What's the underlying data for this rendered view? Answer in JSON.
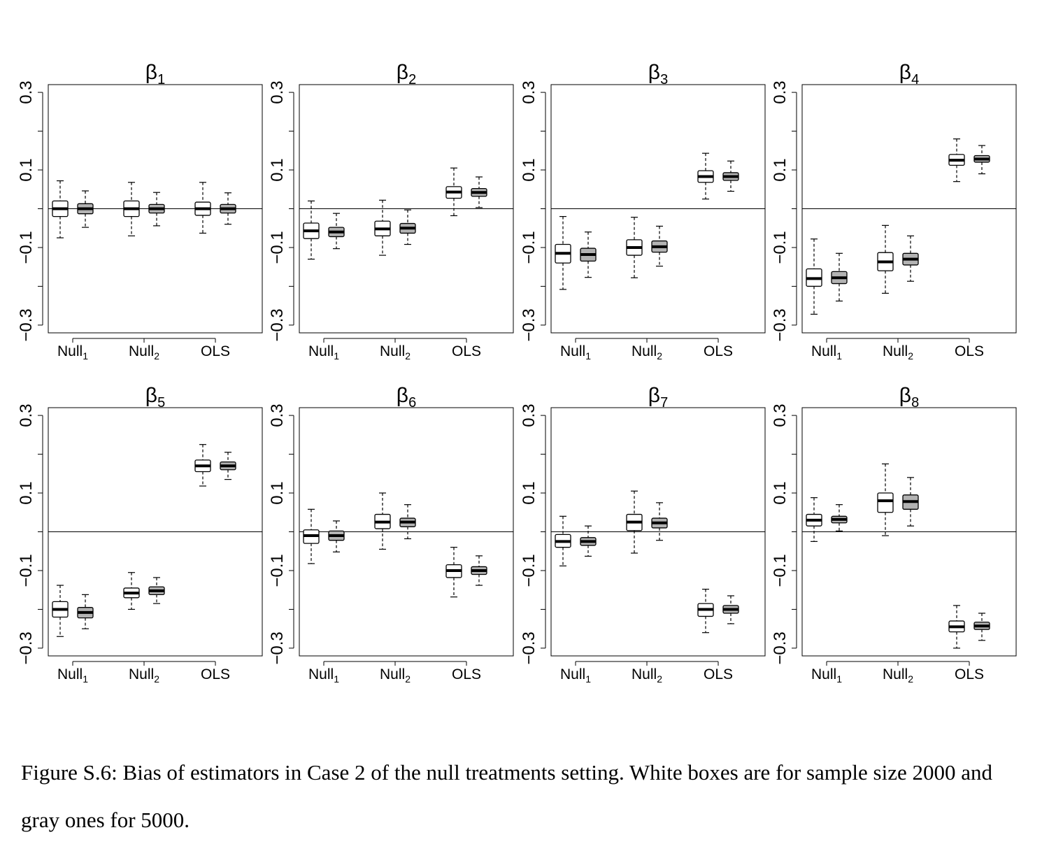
{
  "caption": "Figure S.6: Bias of estimators in Case 2 of the null treatments setting. White boxes are for sample size 2000 and gray ones for 5000.",
  "colors": {
    "white_box": "#ffffff",
    "gray_box": "#b3b3b3",
    "ink": "#000000"
  },
  "chart_data": [
    {
      "type": "boxplot",
      "title": "β1",
      "title_base": "β",
      "title_sub": "1",
      "ylim": [
        -0.32,
        0.32
      ],
      "yticks": [
        "0.3",
        "0.1",
        "−0.1",
        "−0.3"
      ],
      "ytick_values": [
        0.3,
        0.1,
        -0.1,
        -0.3
      ],
      "hline": 0,
      "groups": [
        {
          "label_base": "Null",
          "label_sub": "1",
          "white": [
            -0.075,
            -0.02,
            0,
            0.02,
            0.072
          ],
          "gray": [
            -0.048,
            -0.013,
            0,
            0.013,
            0.046
          ]
        },
        {
          "label_base": "Null",
          "label_sub": "2",
          "white": [
            -0.07,
            -0.02,
            0,
            0.02,
            0.068
          ],
          "gray": [
            -0.044,
            -0.011,
            0,
            0.011,
            0.042
          ]
        },
        {
          "label_base": "OLS",
          "label_sub": "",
          "white": [
            -0.063,
            -0.017,
            0,
            0.017,
            0.068
          ],
          "gray": [
            -0.04,
            -0.011,
            0,
            0.011,
            0.041
          ]
        }
      ]
    },
    {
      "type": "boxplot",
      "title": "β2",
      "title_base": "β",
      "title_sub": "2",
      "ylim": [
        -0.32,
        0.32
      ],
      "yticks": [
        "0.3",
        "0.1",
        "−0.1",
        "−0.3"
      ],
      "ytick_values": [
        0.3,
        0.1,
        -0.1,
        -0.3
      ],
      "hline": 0,
      "groups": [
        {
          "label_base": "Null",
          "label_sub": "1",
          "white": [
            -0.13,
            -0.077,
            -0.057,
            -0.037,
            0.02
          ],
          "gray": [
            -0.103,
            -0.072,
            -0.06,
            -0.048,
            -0.012
          ]
        },
        {
          "label_base": "Null",
          "label_sub": "2",
          "white": [
            -0.12,
            -0.07,
            -0.052,
            -0.032,
            0.022
          ],
          "gray": [
            -0.092,
            -0.063,
            -0.05,
            -0.038,
            -0.003
          ]
        },
        {
          "label_base": "OLS",
          "label_sub": "",
          "white": [
            -0.018,
            0.027,
            0.043,
            0.057,
            0.105
          ],
          "gray": [
            0.003,
            0.032,
            0.042,
            0.052,
            0.082
          ]
        }
      ]
    },
    {
      "type": "boxplot",
      "title": "β3",
      "title_base": "β",
      "title_sub": "3",
      "ylim": [
        -0.32,
        0.32
      ],
      "yticks": [
        "0.3",
        "0.1",
        "−0.1",
        "−0.3"
      ],
      "ytick_values": [
        0.3,
        0.1,
        -0.1,
        -0.3
      ],
      "hline": 0,
      "groups": [
        {
          "label_base": "Null",
          "label_sub": "1",
          "white": [
            -0.208,
            -0.14,
            -0.115,
            -0.092,
            -0.02
          ],
          "gray": [
            -0.177,
            -0.135,
            -0.118,
            -0.102,
            -0.06
          ]
        },
        {
          "label_base": "Null",
          "label_sub": "2",
          "white": [
            -0.178,
            -0.12,
            -0.1,
            -0.08,
            -0.022
          ],
          "gray": [
            -0.148,
            -0.112,
            -0.098,
            -0.083,
            -0.045
          ]
        },
        {
          "label_base": "OLS",
          "label_sub": "",
          "white": [
            0.025,
            0.068,
            0.083,
            0.098,
            0.143
          ],
          "gray": [
            0.045,
            0.073,
            0.083,
            0.093,
            0.123
          ]
        }
      ]
    },
    {
      "type": "boxplot",
      "title": "β4",
      "title_base": "β",
      "title_sub": "4",
      "ylim": [
        -0.32,
        0.32
      ],
      "yticks": [
        "0.3",
        "0.1",
        "−0.1",
        "−0.3"
      ],
      "ytick_values": [
        0.3,
        0.1,
        -0.1,
        -0.3
      ],
      "hline": 0,
      "groups": [
        {
          "label_base": "Null",
          "label_sub": "1",
          "white": [
            -0.272,
            -0.2,
            -0.18,
            -0.155,
            -0.078
          ],
          "gray": [
            -0.238,
            -0.193,
            -0.178,
            -0.162,
            -0.115
          ]
        },
        {
          "label_base": "Null",
          "label_sub": "2",
          "white": [
            -0.218,
            -0.16,
            -0.137,
            -0.113,
            -0.043
          ],
          "gray": [
            -0.187,
            -0.145,
            -0.13,
            -0.115,
            -0.07
          ]
        },
        {
          "label_base": "OLS",
          "label_sub": "",
          "white": [
            0.07,
            0.112,
            0.125,
            0.14,
            0.18
          ],
          "gray": [
            0.09,
            0.12,
            0.128,
            0.137,
            0.163
          ]
        }
      ]
    },
    {
      "type": "boxplot",
      "title": "β5",
      "title_base": "β",
      "title_sub": "5",
      "ylim": [
        -0.32,
        0.32
      ],
      "yticks": [
        "0.3",
        "0.1",
        "−0.1",
        "−0.3"
      ],
      "ytick_values": [
        0.3,
        0.1,
        -0.1,
        -0.3
      ],
      "hline": 0,
      "groups": [
        {
          "label_base": "Null",
          "label_sub": "1",
          "white": [
            -0.27,
            -0.22,
            -0.2,
            -0.18,
            -0.138
          ],
          "gray": [
            -0.25,
            -0.222,
            -0.208,
            -0.195,
            -0.162
          ]
        },
        {
          "label_base": "Null",
          "label_sub": "2",
          "white": [
            -0.2,
            -0.17,
            -0.158,
            -0.145,
            -0.105
          ],
          "gray": [
            -0.185,
            -0.162,
            -0.152,
            -0.142,
            -0.118
          ]
        },
        {
          "label_base": "OLS",
          "label_sub": "",
          "white": [
            0.118,
            0.155,
            0.17,
            0.185,
            0.225
          ],
          "gray": [
            0.135,
            0.16,
            0.17,
            0.18,
            0.205
          ]
        }
      ]
    },
    {
      "type": "boxplot",
      "title": "β6",
      "title_base": "β",
      "title_sub": "6",
      "ylim": [
        -0.32,
        0.32
      ],
      "yticks": [
        "0.3",
        "0.1",
        "−0.1",
        "−0.3"
      ],
      "ytick_values": [
        0.3,
        0.1,
        -0.1,
        -0.3
      ],
      "hline": 0,
      "groups": [
        {
          "label_base": "Null",
          "label_sub": "1",
          "white": [
            -0.082,
            -0.03,
            -0.01,
            0.005,
            0.058
          ],
          "gray": [
            -0.052,
            -0.022,
            -0.01,
            0.002,
            0.028
          ]
        },
        {
          "label_base": "Null",
          "label_sub": "2",
          "white": [
            -0.045,
            0.008,
            0.025,
            0.045,
            0.1
          ],
          "gray": [
            -0.018,
            0.013,
            0.025,
            0.035,
            0.07
          ]
        },
        {
          "label_base": "OLS",
          "label_sub": "",
          "white": [
            -0.168,
            -0.118,
            -0.1,
            -0.085,
            -0.04
          ],
          "gray": [
            -0.138,
            -0.11,
            -0.1,
            -0.09,
            -0.062
          ]
        }
      ]
    },
    {
      "type": "boxplot",
      "title": "β7",
      "title_base": "β",
      "title_sub": "7",
      "ylim": [
        -0.32,
        0.32
      ],
      "yticks": [
        "0.3",
        "0.1",
        "−0.1",
        "−0.3"
      ],
      "ytick_values": [
        0.3,
        0.1,
        -0.1,
        -0.3
      ],
      "hline": 0,
      "groups": [
        {
          "label_base": "Null",
          "label_sub": "1",
          "white": [
            -0.088,
            -0.04,
            -0.025,
            -0.007,
            0.04
          ],
          "gray": [
            -0.063,
            -0.035,
            -0.025,
            -0.015,
            0.015
          ]
        },
        {
          "label_base": "Null",
          "label_sub": "2",
          "white": [
            -0.055,
            0.003,
            0.025,
            0.045,
            0.105
          ],
          "gray": [
            -0.022,
            0.01,
            0.023,
            0.035,
            0.075
          ]
        },
        {
          "label_base": "OLS",
          "label_sub": "",
          "white": [
            -0.26,
            -0.218,
            -0.2,
            -0.185,
            -0.148
          ],
          "gray": [
            -0.237,
            -0.21,
            -0.2,
            -0.19,
            -0.165
          ]
        }
      ]
    },
    {
      "type": "boxplot",
      "title": "β8",
      "title_base": "β",
      "title_sub": "8",
      "ylim": [
        -0.32,
        0.32
      ],
      "yticks": [
        "0.3",
        "0.1",
        "−0.1",
        "−0.3"
      ],
      "ytick_values": [
        0.3,
        0.1,
        -0.1,
        -0.3
      ],
      "hline": 0,
      "groups": [
        {
          "label_base": "Null",
          "label_sub": "1",
          "white": [
            -0.025,
            0.015,
            0.03,
            0.045,
            0.088
          ],
          "gray": [
            0.002,
            0.023,
            0.032,
            0.04,
            0.07
          ]
        },
        {
          "label_base": "Null",
          "label_sub": "2",
          "white": [
            -0.01,
            0.05,
            0.08,
            0.1,
            0.175
          ],
          "gray": [
            0.015,
            0.058,
            0.078,
            0.095,
            0.14
          ]
        },
        {
          "label_base": "OLS",
          "label_sub": "",
          "white": [
            -0.3,
            -0.258,
            -0.245,
            -0.23,
            -0.19
          ],
          "gray": [
            -0.28,
            -0.252,
            -0.243,
            -0.233,
            -0.21
          ]
        }
      ]
    }
  ]
}
